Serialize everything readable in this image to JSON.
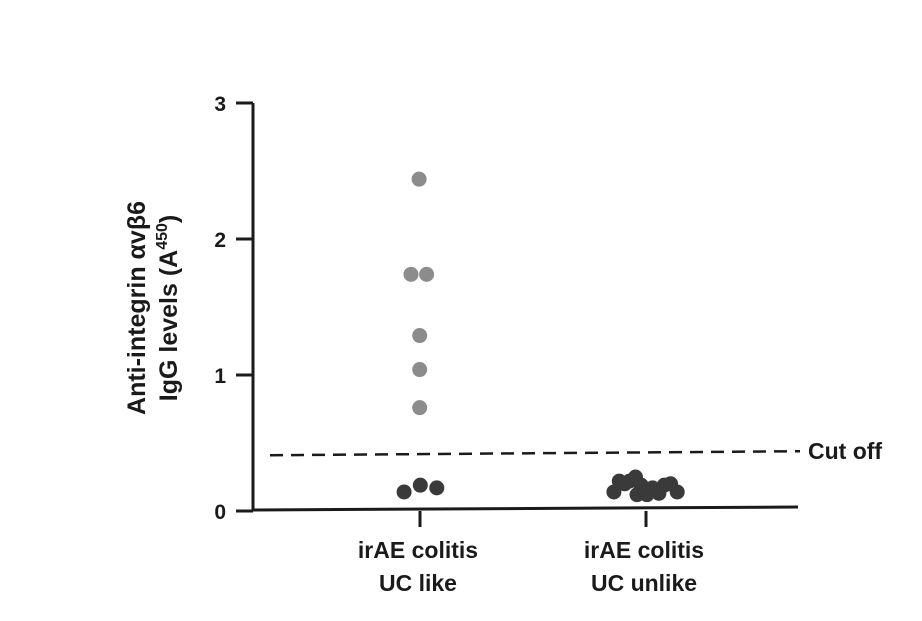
{
  "chart_data": {
    "type": "scatter",
    "ylabel_line1": "Anti-integrin αvβ6",
    "ylabel_line2_main": "IgG levels (A",
    "ylabel_line2_sup": "450",
    "ylabel_line2_end": ")",
    "ylim": [
      0,
      3
    ],
    "yticks": [
      0,
      1,
      2,
      3
    ],
    "ytick_labels": [
      "0",
      "1",
      "2",
      "3"
    ],
    "categories": [
      {
        "line1": "irAE colitis",
        "line2": "UC like"
      },
      {
        "line1": "irAE colitis",
        "line2": "UC unlike"
      }
    ],
    "reference_line": {
      "value": 0.41,
      "label": "Cut off",
      "style": "dashed"
    },
    "points": [
      {
        "category": 0,
        "offset": -0.03,
        "y": 2.44,
        "color": "#8c8c8c"
      },
      {
        "category": 0,
        "offset": -0.3,
        "y": 1.74,
        "color": "#8c8c8c"
      },
      {
        "category": 0,
        "offset": 0.22,
        "y": 1.74,
        "color": "#8c8c8c"
      },
      {
        "category": 0,
        "offset": -0.01,
        "y": 1.29,
        "color": "#8c8c8c"
      },
      {
        "category": 0,
        "offset": -0.01,
        "y": 1.04,
        "color": "#8c8c8c"
      },
      {
        "category": 0,
        "offset": -0.01,
        "y": 0.76,
        "color": "#8c8c8c"
      },
      {
        "category": 0,
        "offset": -0.53,
        "y": 0.14,
        "color": "#3a3a3a"
      },
      {
        "category": 0,
        "offset": 0.01,
        "y": 0.19,
        "color": "#3a3a3a"
      },
      {
        "category": 0,
        "offset": 0.56,
        "y": 0.17,
        "color": "#3a3a3a"
      },
      {
        "category": 1,
        "offset": -1.07,
        "y": 0.14,
        "color": "#3a3a3a"
      },
      {
        "category": 1,
        "offset": -0.89,
        "y": 0.22,
        "color": "#3a3a3a"
      },
      {
        "category": 1,
        "offset": -0.71,
        "y": 0.2,
        "color": "#3a3a3a"
      },
      {
        "category": 1,
        "offset": -0.55,
        "y": 0.22,
        "color": "#3a3a3a"
      },
      {
        "category": 1,
        "offset": -0.35,
        "y": 0.25,
        "color": "#3a3a3a"
      },
      {
        "category": 1,
        "offset": -0.3,
        "y": 0.12,
        "color": "#3a3a3a"
      },
      {
        "category": 1,
        "offset": -0.16,
        "y": 0.19,
        "color": "#3a3a3a"
      },
      {
        "category": 1,
        "offset": 0.03,
        "y": 0.12,
        "color": "#3a3a3a"
      },
      {
        "category": 1,
        "offset": 0.22,
        "y": 0.17,
        "color": "#3a3a3a"
      },
      {
        "category": 1,
        "offset": 0.43,
        "y": 0.13,
        "color": "#3a3a3a"
      },
      {
        "category": 1,
        "offset": 0.61,
        "y": 0.19,
        "color": "#3a3a3a"
      },
      {
        "category": 1,
        "offset": 0.82,
        "y": 0.2,
        "color": "#3a3a3a"
      },
      {
        "category": 1,
        "offset": 1.04,
        "y": 0.14,
        "color": "#3a3a3a"
      }
    ],
    "grid": false,
    "legend": "none"
  }
}
